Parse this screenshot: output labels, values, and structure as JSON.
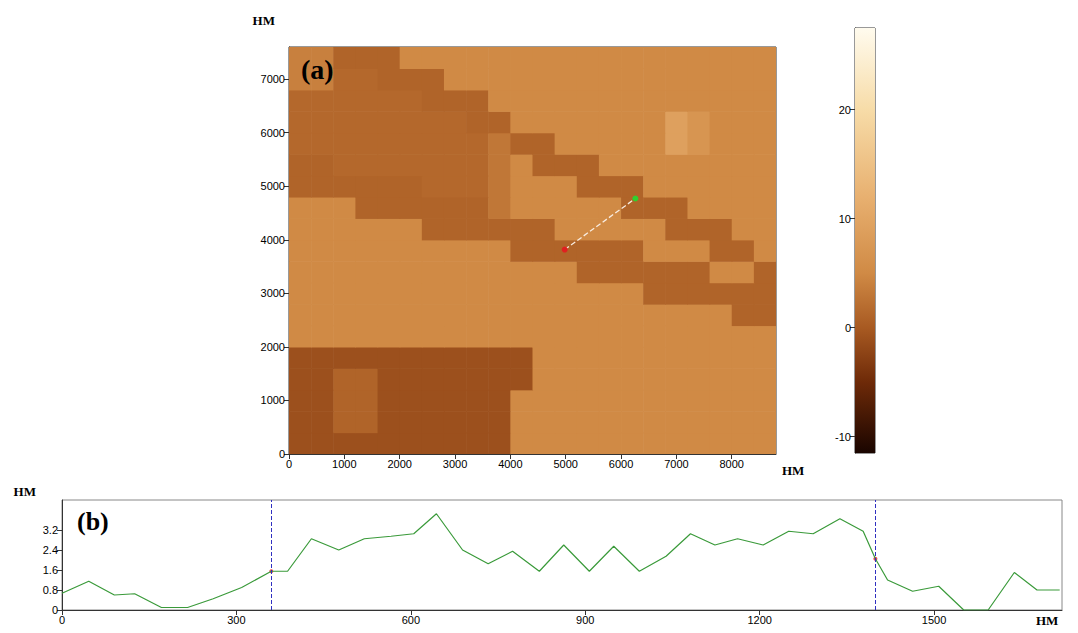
{
  "chart_data": [
    {
      "type": "heatmap",
      "title": "(a)",
      "x_label": "HM",
      "y_label": "HM",
      "xlim": [
        0,
        8800
      ],
      "xticks": [
        0,
        1000,
        2000,
        3000,
        4000,
        5000,
        6000,
        7000,
        8000
      ],
      "ylim": [
        0,
        7600
      ],
      "yticks": [
        0,
        1000,
        2000,
        3000,
        4000,
        5000,
        6000,
        7000
      ],
      "x": [
        200,
        600,
        1000,
        1400,
        1800,
        2200,
        2600,
        3000,
        3400,
        3800,
        4200,
        4600,
        5000,
        5400,
        5800,
        6200,
        6600,
        7000,
        7400,
        7800,
        8200,
        8600
      ],
      "y": [
        200,
        600,
        1000,
        1400,
        1800,
        2200,
        2600,
        3000,
        3400,
        3800,
        4200,
        4600,
        5000,
        5400,
        5800,
        6200,
        6600,
        7000,
        7400
      ],
      "z": [
        [
          -1,
          -1,
          -1,
          -1,
          -1,
          -1,
          -1,
          -1,
          -1,
          -1,
          5,
          5,
          5,
          5,
          5,
          5,
          5,
          5,
          5,
          5,
          5,
          5
        ],
        [
          -1,
          -1,
          1,
          1,
          -1,
          -1,
          -1,
          -1,
          -1,
          -1,
          5,
          5,
          5,
          5,
          5,
          5,
          5,
          5,
          5,
          5,
          5,
          5
        ],
        [
          -1,
          -1,
          1,
          1,
          -1,
          -1,
          -1,
          -1,
          -1,
          -1,
          5,
          5,
          5,
          5,
          5,
          5,
          5,
          5,
          5,
          5,
          5,
          5
        ],
        [
          -1,
          -1,
          1,
          1,
          -1,
          -1,
          -1,
          -1,
          -1,
          -1,
          -1,
          5,
          5,
          5,
          5,
          5,
          5,
          5,
          5,
          5,
          5,
          5
        ],
        [
          -1,
          -1,
          -1,
          -1,
          -1,
          -1,
          -1,
          -1,
          -1,
          -1,
          -1,
          5,
          5,
          5,
          5,
          5,
          5,
          5,
          5,
          5,
          5,
          5
        ],
        [
          5,
          5,
          5,
          5,
          5,
          5,
          5,
          5,
          5,
          5,
          5,
          5,
          5,
          5,
          5,
          5,
          5,
          5,
          5,
          5,
          5,
          5
        ],
        [
          5,
          5,
          5,
          5,
          5,
          5,
          5,
          5,
          5,
          5,
          5,
          5,
          5,
          5,
          5,
          5,
          5,
          5,
          5,
          5,
          1,
          1
        ],
        [
          5,
          5,
          5,
          5,
          5,
          5,
          5,
          5,
          5,
          5,
          5,
          5,
          5,
          5,
          5,
          5,
          1,
          1,
          1,
          1,
          1,
          1
        ],
        [
          5,
          5,
          5,
          5,
          5,
          5,
          5,
          5,
          5,
          5,
          5,
          5,
          5,
          1,
          1,
          1,
          1,
          1,
          1,
          5,
          5,
          1
        ],
        [
          5,
          5,
          5,
          5,
          5,
          5,
          5,
          5,
          5,
          5,
          1,
          1,
          1,
          1,
          1,
          1,
          5,
          5,
          5,
          1,
          1,
          5
        ],
        [
          5,
          5,
          5,
          5,
          5,
          5,
          1,
          1,
          1,
          1,
          1,
          1,
          5,
          5,
          5,
          5,
          5,
          1,
          1,
          1,
          5,
          5
        ],
        [
          5,
          5,
          5,
          1,
          1,
          1,
          1,
          1,
          1,
          3,
          5,
          5,
          5,
          5,
          5,
          1,
          1,
          1,
          5,
          5,
          5,
          5
        ],
        [
          1,
          1,
          1,
          1,
          1,
          1,
          1.5,
          1.5,
          1.5,
          3,
          5,
          5,
          5,
          1,
          1,
          1,
          5,
          5,
          5,
          5,
          5,
          5
        ],
        [
          1,
          1,
          1.5,
          1.5,
          1.5,
          1.5,
          1.5,
          1.5,
          1.5,
          3,
          5,
          1,
          1,
          1,
          5,
          5,
          5,
          5,
          5,
          5,
          5,
          5
        ],
        [
          1.5,
          1.5,
          1.5,
          1.5,
          1.5,
          1.5,
          1.5,
          1.5,
          1.5,
          3,
          1,
          1,
          5,
          5,
          5,
          5,
          5,
          9,
          7,
          5,
          5,
          5
        ],
        [
          1.5,
          1.5,
          1.5,
          1.5,
          1.5,
          1.5,
          1.5,
          1.5,
          1,
          1,
          5,
          5,
          5,
          5,
          5,
          5,
          5,
          9,
          7,
          5,
          5,
          5
        ],
        [
          1.5,
          1.5,
          1.5,
          1.5,
          1.5,
          1.5,
          1,
          1,
          1,
          5,
          5,
          5,
          5,
          5,
          5,
          5,
          5,
          5,
          5,
          5,
          5,
          5
        ],
        [
          4,
          4,
          1.5,
          1.5,
          1,
          1,
          1,
          5,
          5,
          5,
          5,
          5,
          5,
          5,
          5,
          5,
          5,
          5,
          5,
          5,
          5,
          5
        ],
        [
          4,
          4,
          1,
          1,
          1,
          5,
          5,
          5,
          5,
          5,
          5,
          5,
          5,
          5,
          5,
          5,
          5,
          5,
          5,
          5,
          5,
          5
        ]
      ],
      "colorbar": {
        "range": [
          -11.5,
          27.5
        ],
        "ticks": [
          -10,
          0,
          10,
          20
        ]
      },
      "profile_line": {
        "x": [
          4982,
          6259
        ],
        "y": [
          3817,
          4771
        ]
      }
    },
    {
      "type": "line",
      "title": "(b)",
      "x_label": "HM",
      "y_label": "HM",
      "xlim": [
        0,
        1720
      ],
      "xticks": [
        0,
        300,
        600,
        900,
        1200,
        1500
      ],
      "ylim": [
        0,
        4.4
      ],
      "yticks": [
        0,
        0.8,
        1.6,
        2.4,
        3.2
      ],
      "color": "#3a9a3a",
      "x": [
        0,
        46,
        90,
        125,
        171,
        216,
        260,
        309,
        360,
        388,
        429,
        476,
        520,
        566,
        605,
        644,
        689,
        733,
        775,
        821,
        863,
        907,
        949,
        993,
        1039,
        1081,
        1123,
        1162,
        1206,
        1250,
        1292,
        1338,
        1378,
        1399,
        1420,
        1463,
        1508,
        1551,
        1593,
        1638,
        1677,
        1716
      ],
      "values": [
        0.67,
        1.15,
        0.6,
        0.65,
        0.1,
        0.1,
        0.45,
        0.9,
        1.55,
        1.55,
        2.85,
        2.4,
        2.85,
        2.95,
        3.05,
        3.85,
        2.4,
        1.85,
        2.35,
        1.55,
        2.6,
        1.55,
        2.55,
        1.55,
        2.15,
        3.05,
        2.6,
        2.85,
        2.6,
        3.15,
        3.05,
        3.65,
        3.15,
        2.05,
        1.2,
        0.75,
        0.95,
        0,
        0,
        1.5,
        0.8,
        0.8
      ],
      "cursors": {
        "x": [
          360,
          1399
        ],
        "y": [
          1.55,
          2.05
        ]
      }
    }
  ]
}
